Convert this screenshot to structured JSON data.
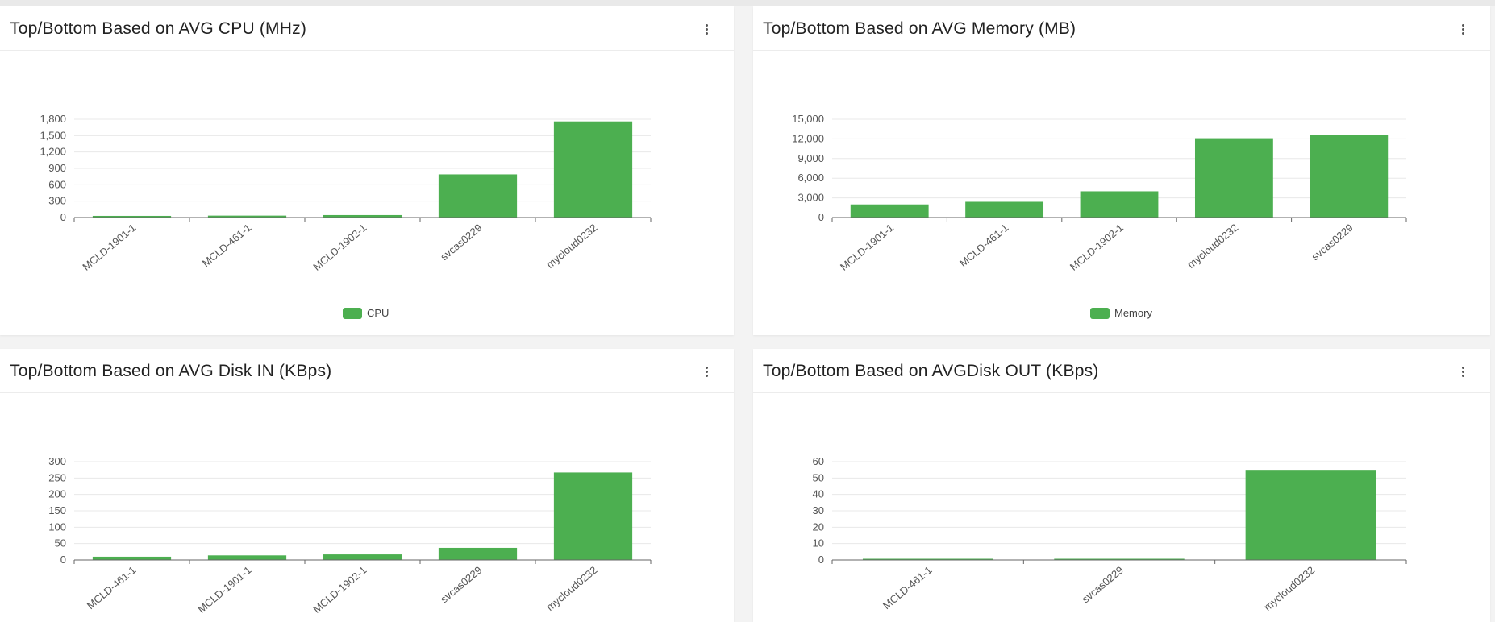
{
  "colors": {
    "bar": "#4caf50",
    "grid": "#e8e8e8",
    "axis": "#666666"
  },
  "panels": [
    {
      "title": "Top/Bottom Based on AVG CPU (MHz)",
      "menu_icon": "more-vertical-icon",
      "legend": "CPU"
    },
    {
      "title": "Top/Bottom Based on AVG Memory (MB)",
      "menu_icon": "more-vertical-icon",
      "legend": "Memory"
    },
    {
      "title": "Top/Bottom Based on AVG Disk IN (KBps)",
      "menu_icon": "more-vertical-icon",
      "legend": ""
    },
    {
      "title": "Top/Bottom Based on AVGDisk OUT (KBps)",
      "menu_icon": "more-vertical-icon",
      "legend": ""
    }
  ],
  "chart_data": [
    {
      "type": "bar",
      "title": "Top/Bottom Based on AVG CPU (MHz)",
      "categories": [
        "MCLD-1901-1",
        "MCLD-461-1",
        "MCLD-1902-1",
        "svcas0229",
        "mycloud0232"
      ],
      "series": [
        {
          "name": "CPU",
          "values": [
            30,
            35,
            45,
            790,
            1760
          ]
        }
      ],
      "yticks": [
        "0",
        "300",
        "600",
        "900",
        "1,200",
        "1,500",
        "1,800"
      ],
      "ylim": [
        0,
        1800
      ],
      "grid": true,
      "legend_position": "bottom"
    },
    {
      "type": "bar",
      "title": "Top/Bottom Based on AVG Memory (MB)",
      "categories": [
        "MCLD-1901-1",
        "MCLD-461-1",
        "MCLD-1902-1",
        "mycloud0232",
        "svcas0229"
      ],
      "series": [
        {
          "name": "Memory",
          "values": [
            2000,
            2400,
            4000,
            12100,
            12600
          ]
        }
      ],
      "yticks": [
        "0",
        "3,000",
        "6,000",
        "9,000",
        "12,000",
        "15,000"
      ],
      "ylim": [
        0,
        15000
      ],
      "grid": true,
      "legend_position": "bottom"
    },
    {
      "type": "bar",
      "title": "Top/Bottom Based on AVG Disk IN (KBps)",
      "categories": [
        "MCLD-461-1",
        "MCLD-1901-1",
        "MCLD-1902-1",
        "svcas0229",
        "mycloud0232"
      ],
      "series": [
        {
          "values": [
            10,
            14,
            17,
            37,
            267
          ]
        }
      ],
      "yticks": [
        "0",
        "50",
        "100",
        "150",
        "200",
        "250",
        "300"
      ],
      "ylim": [
        0,
        300
      ],
      "grid": true
    },
    {
      "type": "bar",
      "title": "Top/Bottom Based on AVGDisk OUT (KBps)",
      "categories": [
        "MCLD-461-1",
        "svcas0229",
        "mycloud0232"
      ],
      "series": [
        {
          "values": [
            0.1,
            0.4,
            55
          ]
        }
      ],
      "yticks": [
        "0",
        "10",
        "20",
        "30",
        "40",
        "50",
        "60"
      ],
      "ylim": [
        0,
        60
      ],
      "grid": true
    }
  ]
}
